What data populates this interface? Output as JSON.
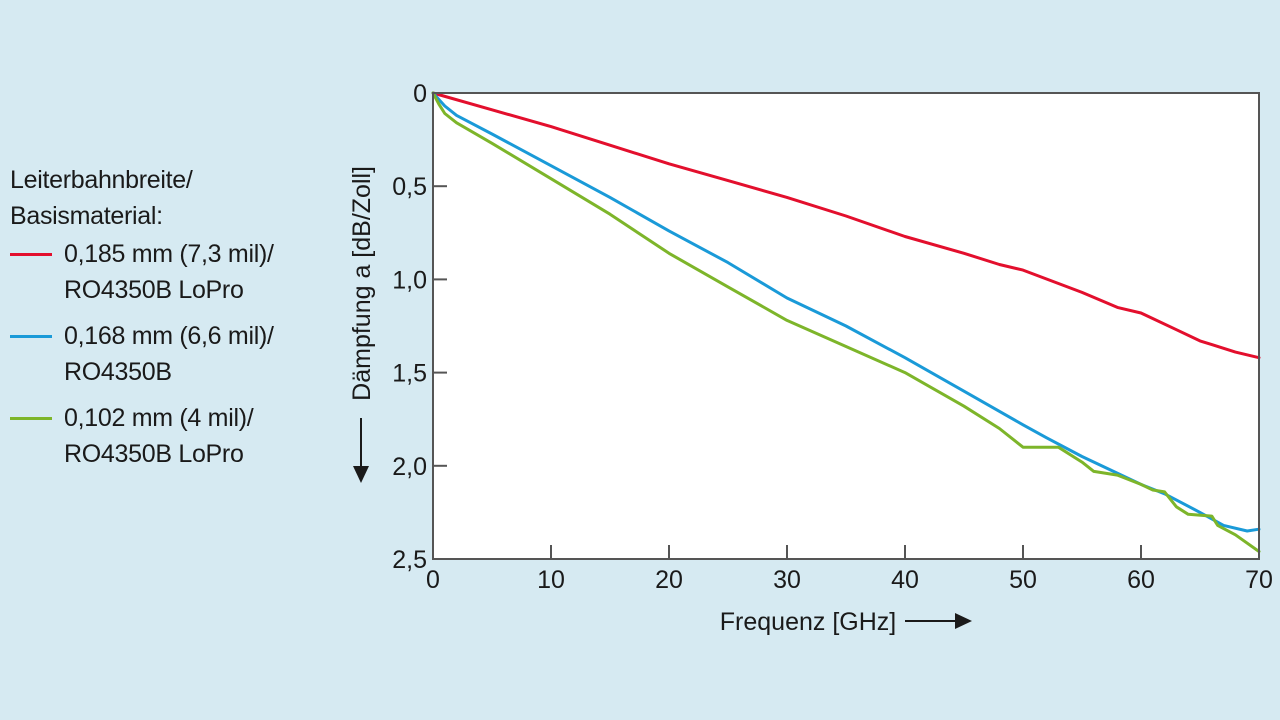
{
  "legend": {
    "title_line1": "Leiterbahnbreite/",
    "title_line2": "Basismaterial:"
  },
  "chart_data": {
    "type": "line",
    "title": "",
    "xlabel": "Frequenz [GHz]",
    "ylabel": "Dämpfung a [dB/Zoll]",
    "xlim": [
      0,
      70
    ],
    "ylim": [
      0,
      2.5
    ],
    "y_inverted": true,
    "grid": false,
    "legend_position": "left",
    "x_ticks": [
      0,
      10,
      20,
      30,
      40,
      50,
      60,
      70
    ],
    "x_tick_labels": [
      "0",
      "10",
      "20",
      "30",
      "40",
      "50",
      "60",
      "70"
    ],
    "y_ticks": [
      0,
      0.5,
      1.0,
      1.5,
      2.0,
      2.5
    ],
    "y_tick_labels": [
      "0",
      "0,5",
      "1,0",
      "1,5",
      "2,0",
      "2,5"
    ],
    "series": [
      {
        "name": "0,185 mm (7,3 mil)/ RO4350B LoPro",
        "name_line1": "0,185 mm (7,3 mil)/",
        "name_line2": "RO4350B LoPro",
        "color": "#e30f2d",
        "x": [
          0,
          5,
          10,
          15,
          20,
          25,
          30,
          35,
          40,
          45,
          48,
          50,
          55,
          58,
          60,
          63,
          65,
          66,
          68,
          70
        ],
        "y": [
          0,
          0.09,
          0.18,
          0.28,
          0.38,
          0.47,
          0.56,
          0.66,
          0.77,
          0.86,
          0.92,
          0.95,
          1.07,
          1.15,
          1.18,
          1.27,
          1.33,
          1.35,
          1.39,
          1.42
        ]
      },
      {
        "name": "0,168 mm (6,6 mil)/ RO4350B",
        "name_line1": "0,168 mm (6,6 mil)/",
        "name_line2": "RO4350B",
        "color": "#1a9ad8",
        "x": [
          0,
          1,
          2,
          5,
          10,
          15,
          20,
          25,
          30,
          35,
          40,
          45,
          50,
          52,
          55,
          60,
          62,
          65,
          67,
          69,
          70
        ],
        "y": [
          0,
          0.07,
          0.12,
          0.22,
          0.39,
          0.56,
          0.74,
          0.91,
          1.1,
          1.25,
          1.42,
          1.6,
          1.78,
          1.85,
          1.95,
          2.1,
          2.15,
          2.25,
          2.32,
          2.35,
          2.34
        ]
      },
      {
        "name": "0,102 mm (4 mil)/ RO4350B LoPro",
        "name_line1": "0,102 mm (4 mil)/",
        "name_line2": "RO4350B LoPro",
        "color": "#7db52a",
        "x": [
          0,
          0.5,
          1,
          2,
          5,
          10,
          15,
          20,
          25,
          30,
          35,
          40,
          45,
          48,
          50,
          51,
          53,
          55,
          56,
          58,
          60,
          61,
          62,
          63,
          64,
          66,
          66.5,
          68,
          70
        ],
        "y": [
          0,
          0.06,
          0.11,
          0.16,
          0.27,
          0.46,
          0.65,
          0.86,
          1.04,
          1.22,
          1.36,
          1.5,
          1.68,
          1.8,
          1.9,
          1.9,
          1.9,
          1.98,
          2.03,
          2.05,
          2.1,
          2.13,
          2.14,
          2.22,
          2.26,
          2.27,
          2.32,
          2.37,
          2.46
        ]
      }
    ]
  }
}
